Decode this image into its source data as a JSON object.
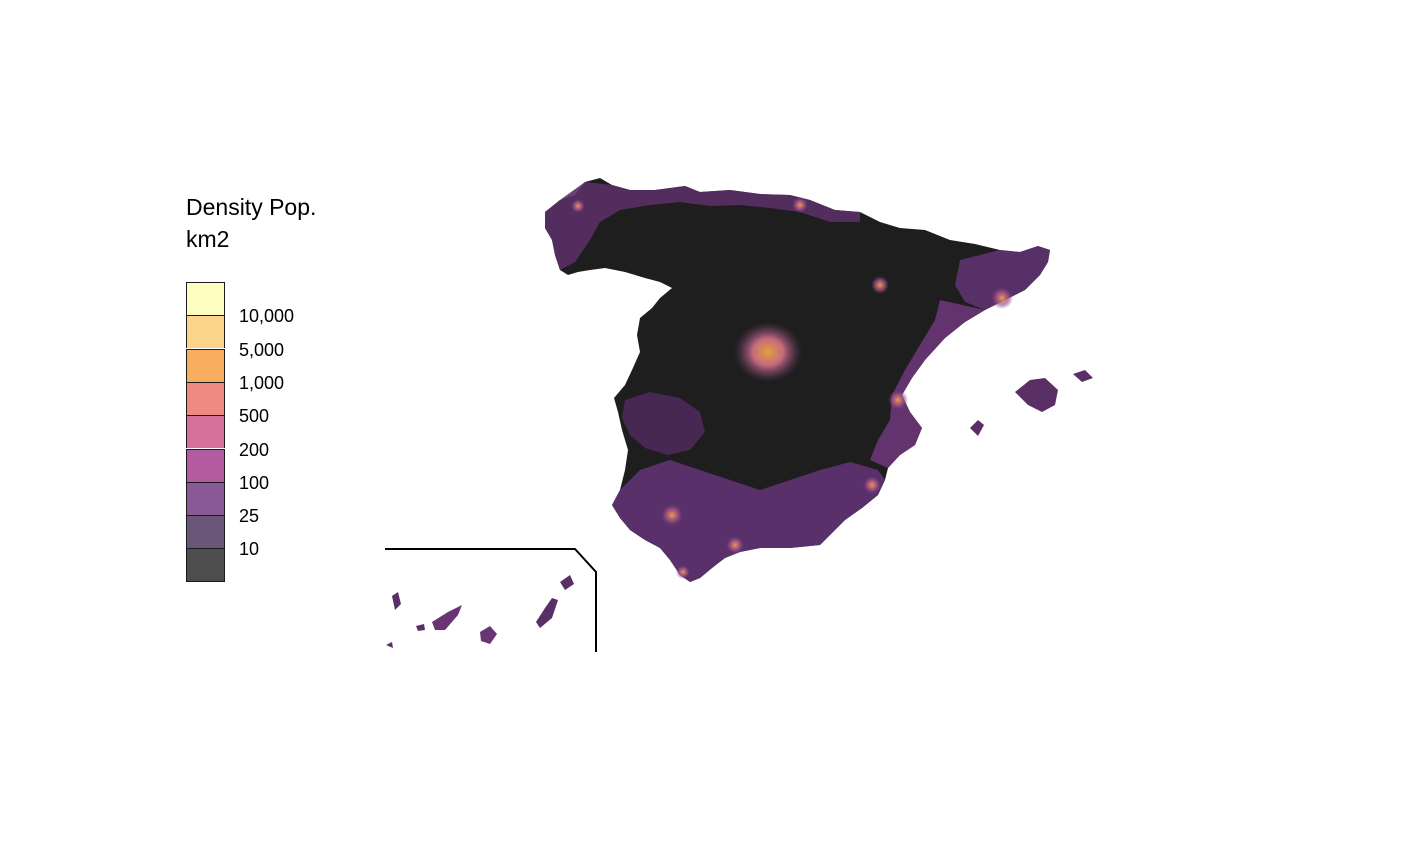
{
  "legend": {
    "title_line1": "Density Pop.",
    "title_line2": "km2",
    "bins": [
      {
        "color": "#FCFDBF"
      },
      {
        "color": "#FBD38A"
      },
      {
        "color": "#F8AE5F"
      },
      {
        "color": "#EE8A82"
      },
      {
        "color": "#D7709A"
      },
      {
        "color": "#B35BA0"
      },
      {
        "color": "#8B5896"
      },
      {
        "color": "#6A5679"
      },
      {
        "color": "#4D4D4D"
      }
    ],
    "breaks": [
      "10,000",
      "5,000",
      "1,000",
      "500",
      "200",
      "100",
      "25",
      "10"
    ]
  },
  "map": {
    "region": "Spain",
    "fill_low": "#1E1E1E",
    "inset": "Canary Islands"
  }
}
